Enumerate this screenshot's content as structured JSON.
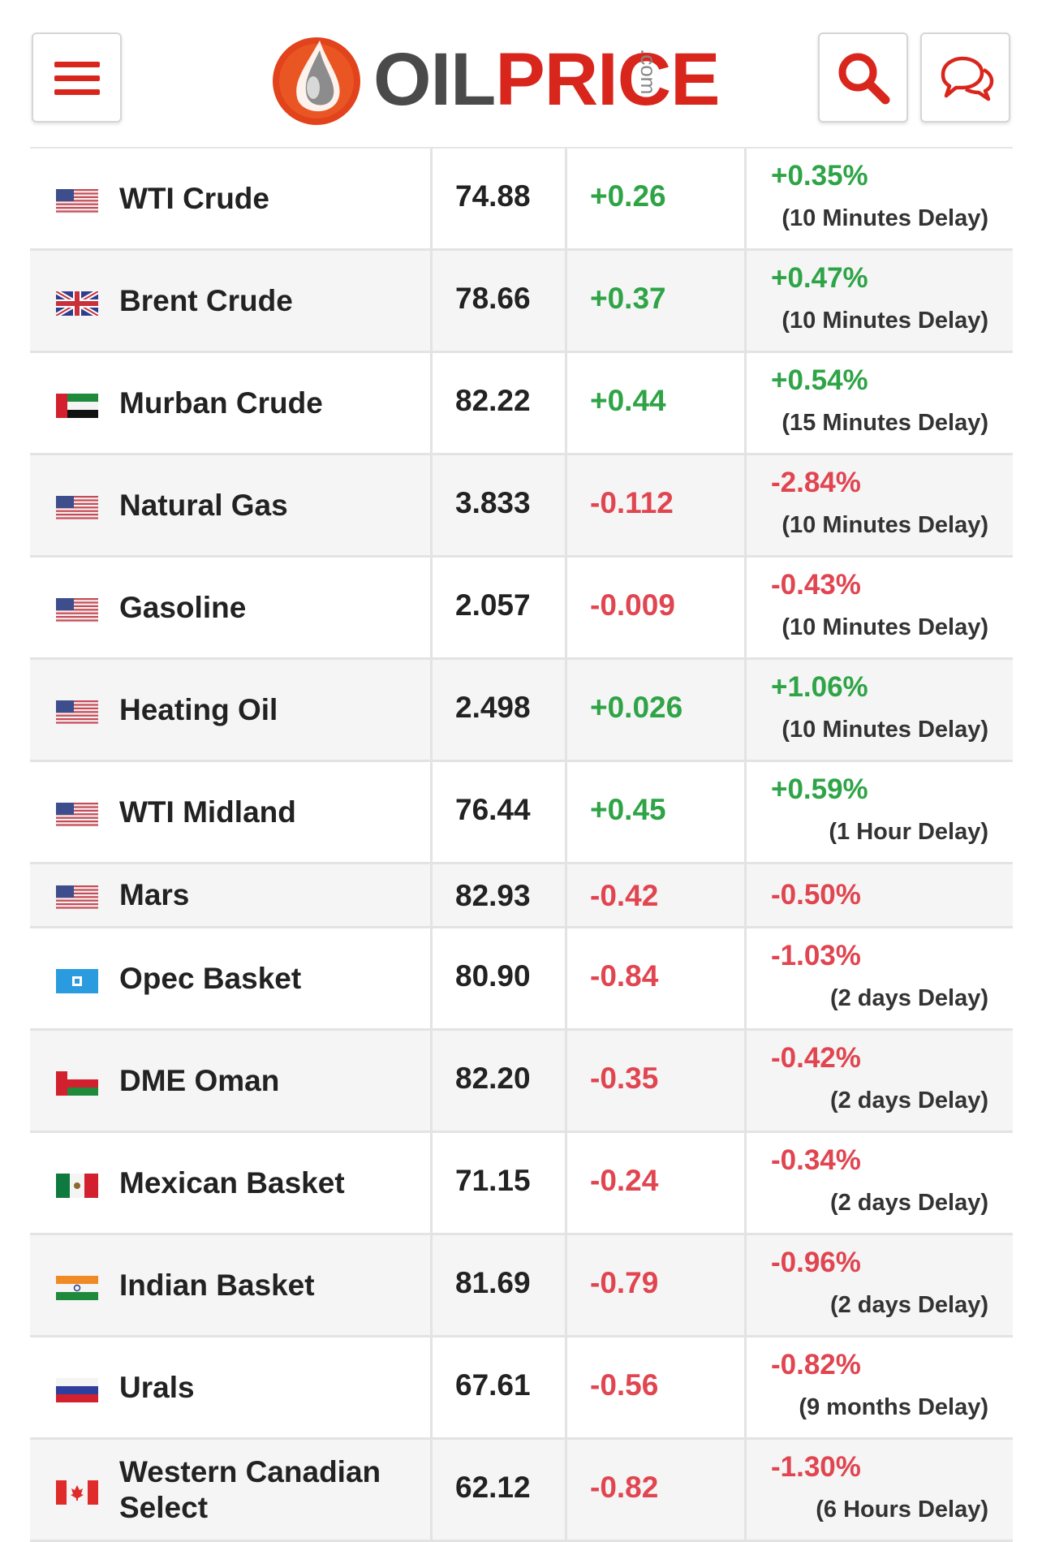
{
  "header": {
    "logo": {
      "oil": "OIL",
      "price": "PRICE",
      "com": ".com"
    },
    "icons": {
      "menu": "hamburger-icon",
      "search": "search-icon",
      "chat": "chat-bubbles-icon"
    },
    "colors": {
      "brand_red": "#d9261c",
      "positive": "#2ea447",
      "negative": "#e04550"
    }
  },
  "rows": [
    {
      "name": "WTI Crude",
      "flag": "us-flag-icon",
      "price": "74.88",
      "change": "+0.26",
      "percent": "+0.35%",
      "delay": "(10 Minutes Delay)",
      "trend": "pos"
    },
    {
      "name": "Brent Crude",
      "flag": "uk-flag-icon",
      "price": "78.66",
      "change": "+0.37",
      "percent": "+0.47%",
      "delay": "(10 Minutes Delay)",
      "trend": "pos"
    },
    {
      "name": "Murban Crude",
      "flag": "uae-flag-icon",
      "price": "82.22",
      "change": "+0.44",
      "percent": "+0.54%",
      "delay": "(15 Minutes Delay)",
      "trend": "pos"
    },
    {
      "name": "Natural Gas",
      "flag": "us-flag-icon",
      "price": "3.833",
      "change": "-0.112",
      "percent": "-2.84%",
      "delay": "(10 Minutes Delay)",
      "trend": "neg"
    },
    {
      "name": "Gasoline",
      "flag": "us-flag-icon",
      "price": "2.057",
      "change": "-0.009",
      "percent": "-0.43%",
      "delay": "(10 Minutes Delay)",
      "trend": "neg"
    },
    {
      "name": "Heating Oil",
      "flag": "us-flag-icon",
      "price": "2.498",
      "change": "+0.026",
      "percent": "+1.06%",
      "delay": "(10 Minutes Delay)",
      "trend": "pos"
    },
    {
      "name": "WTI Midland",
      "flag": "us-flag-icon",
      "price": "76.44",
      "change": "+0.45",
      "percent": "+0.59%",
      "delay": "(1 Hour Delay)",
      "trend": "pos"
    },
    {
      "name": "Mars",
      "flag": "us-flag-icon",
      "price": "82.93",
      "change": "-0.42",
      "percent": "-0.50%",
      "delay": "",
      "trend": "neg"
    },
    {
      "name": "Opec Basket",
      "flag": "opec-flag-icon",
      "price": "80.90",
      "change": "-0.84",
      "percent": "-1.03%",
      "delay": "(2 days Delay)",
      "trend": "neg"
    },
    {
      "name": "DME Oman",
      "flag": "oman-flag-icon",
      "price": "82.20",
      "change": "-0.35",
      "percent": "-0.42%",
      "delay": "(2 days Delay)",
      "trend": "neg"
    },
    {
      "name": "Mexican Basket",
      "flag": "mexico-flag-icon",
      "price": "71.15",
      "change": "-0.24",
      "percent": "-0.34%",
      "delay": "(2 days Delay)",
      "trend": "neg"
    },
    {
      "name": "Indian Basket",
      "flag": "india-flag-icon",
      "price": "81.69",
      "change": "-0.79",
      "percent": "-0.96%",
      "delay": "(2 days Delay)",
      "trend": "neg"
    },
    {
      "name": "Urals",
      "flag": "russia-flag-icon",
      "price": "67.61",
      "change": "-0.56",
      "percent": "-0.82%",
      "delay": "(9 months Delay)",
      "trend": "neg"
    },
    {
      "name": "Western Canadian Select",
      "flag": "canada-flag-icon",
      "price": "62.12",
      "change": "-0.82",
      "percent": "-1.30%",
      "delay": "(6 Hours Delay)",
      "trend": "neg"
    }
  ]
}
